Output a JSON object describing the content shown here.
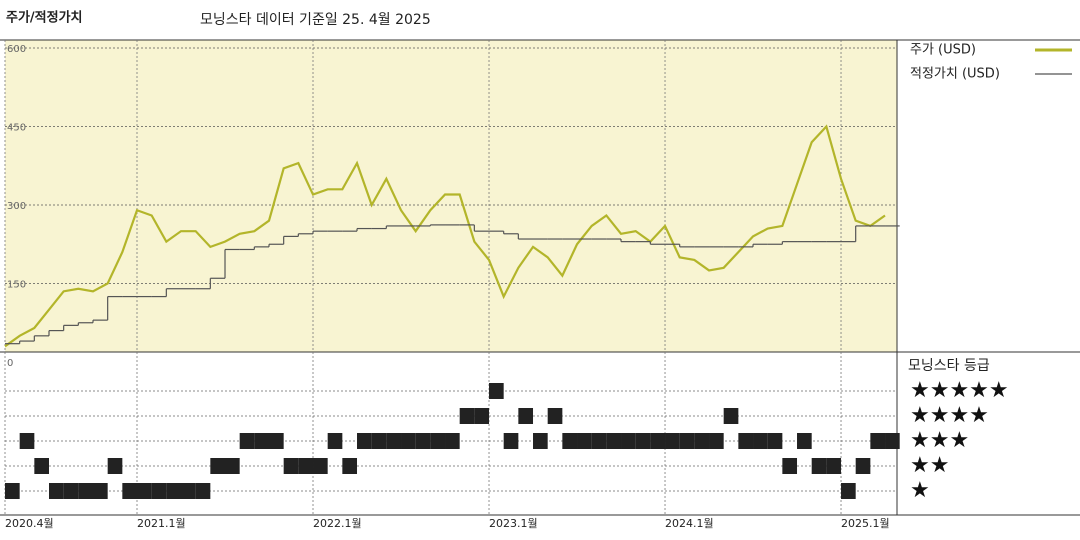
{
  "chart_data": [
    {
      "type": "line",
      "title": "주가/적정가치",
      "subtitle": "모닝스타 데이터 기준일 25. 4월 2025",
      "x": [
        "2020-04",
        "2020-05",
        "2020-06",
        "2020-07",
        "2020-08",
        "2020-09",
        "2020-10",
        "2020-11",
        "2020-12",
        "2021-01",
        "2021-02",
        "2021-03",
        "2021-04",
        "2021-05",
        "2021-06",
        "2021-07",
        "2021-08",
        "2021-09",
        "2021-10",
        "2021-11",
        "2021-12",
        "2022-01",
        "2022-02",
        "2022-03",
        "2022-04",
        "2022-05",
        "2022-06",
        "2022-07",
        "2022-08",
        "2022-09",
        "2022-10",
        "2022-11",
        "2022-12",
        "2023-01",
        "2023-02",
        "2023-03",
        "2023-04",
        "2023-05",
        "2023-06",
        "2023-07",
        "2023-08",
        "2023-09",
        "2023-10",
        "2023-11",
        "2023-12",
        "2024-01",
        "2024-02",
        "2024-03",
        "2024-04",
        "2024-05",
        "2024-06",
        "2024-07",
        "2024-08",
        "2024-09",
        "2024-10",
        "2024-11",
        "2024-12",
        "2025-01",
        "2025-02",
        "2025-03",
        "2025-04"
      ],
      "series": [
        {
          "name": "주가 (USD)",
          "color": "#b3b52a",
          "values": [
            30,
            50,
            65,
            100,
            135,
            140,
            135,
            150,
            210,
            290,
            280,
            230,
            250,
            250,
            220,
            230,
            245,
            250,
            270,
            370,
            380,
            320,
            330,
            330,
            380,
            300,
            350,
            290,
            250,
            290,
            320,
            320,
            230,
            195,
            125,
            180,
            220,
            200,
            165,
            225,
            260,
            280,
            245,
            250,
            230,
            260,
            200,
            195,
            175,
            180,
            210,
            240,
            255,
            260,
            340,
            420,
            450,
            350,
            270,
            260,
            280
          ]
        },
        {
          "name": "적정가치 (USD)",
          "color": "#555555",
          "step": true,
          "values": [
            35,
            40,
            50,
            60,
            70,
            75,
            80,
            125,
            125,
            125,
            125,
            140,
            140,
            140,
            160,
            215,
            215,
            220,
            225,
            240,
            245,
            250,
            250,
            250,
            255,
            255,
            260,
            260,
            260,
            262,
            262,
            262,
            250,
            250,
            245,
            235,
            235,
            235,
            235,
            235,
            235,
            235,
            230,
            230,
            225,
            225,
            220,
            220,
            220,
            220,
            220,
            225,
            225,
            230,
            230,
            230,
            230,
            230,
            260,
            260,
            260
          ]
        }
      ],
      "ylim": [
        0,
        600
      ],
      "yticks": [
        0,
        150,
        300,
        450,
        600
      ],
      "xticks": [
        {
          "value": "2020-04",
          "label": "2020.4월"
        },
        {
          "value": "2021-01",
          "label": "2021.1월"
        },
        {
          "value": "2022-01",
          "label": "2022.1월"
        },
        {
          "value": "2023-01",
          "label": "2023.1월"
        },
        {
          "value": "2024-01",
          "label": "2024.1월"
        },
        {
          "value": "2025-01",
          "label": "2025.1월"
        }
      ],
      "grid": true
    },
    {
      "type": "rating",
      "title": "모닝스타 등급",
      "color": "#222222",
      "x": [
        "2020-04",
        "2020-05",
        "2020-06",
        "2020-07",
        "2020-08",
        "2020-09",
        "2020-10",
        "2020-11",
        "2020-12",
        "2021-01",
        "2021-02",
        "2021-03",
        "2021-04",
        "2021-05",
        "2021-06",
        "2021-07",
        "2021-08",
        "2021-09",
        "2021-10",
        "2021-11",
        "2021-12",
        "2022-01",
        "2022-02",
        "2022-03",
        "2022-04",
        "2022-05",
        "2022-06",
        "2022-07",
        "2022-08",
        "2022-09",
        "2022-10",
        "2022-11",
        "2022-12",
        "2023-01",
        "2023-02",
        "2023-03",
        "2023-04",
        "2023-05",
        "2023-06",
        "2023-07",
        "2023-08",
        "2023-09",
        "2023-10",
        "2023-11",
        "2023-12",
        "2024-01",
        "2024-02",
        "2024-03",
        "2024-04",
        "2024-05",
        "2024-06",
        "2024-07",
        "2024-08",
        "2024-09",
        "2024-10",
        "2024-11",
        "2024-12",
        "2025-01",
        "2025-02",
        "2025-03",
        "2025-04"
      ],
      "values": [
        1,
        3,
        2,
        1,
        1,
        1,
        1,
        2,
        1,
        1,
        1,
        1,
        1,
        1,
        2,
        2,
        3,
        3,
        3,
        2,
        2,
        2,
        3,
        2,
        3,
        3,
        3,
        3,
        3,
        3,
        3,
        4,
        4,
        5,
        3,
        4,
        3,
        4,
        3,
        3,
        3,
        3,
        3,
        3,
        3,
        3,
        3,
        3,
        3,
        4,
        3,
        3,
        3,
        2,
        3,
        2,
        2,
        1,
        2,
        3,
        3
      ],
      "ylim": [
        1,
        5
      ],
      "yticks": [
        {
          "value": 1,
          "label": "★"
        },
        {
          "value": 2,
          "label": "★★"
        },
        {
          "value": 3,
          "label": "★★★"
        },
        {
          "value": 4,
          "label": "★★★★"
        },
        {
          "value": 5,
          "label": "★★★★★"
        }
      ]
    }
  ]
}
